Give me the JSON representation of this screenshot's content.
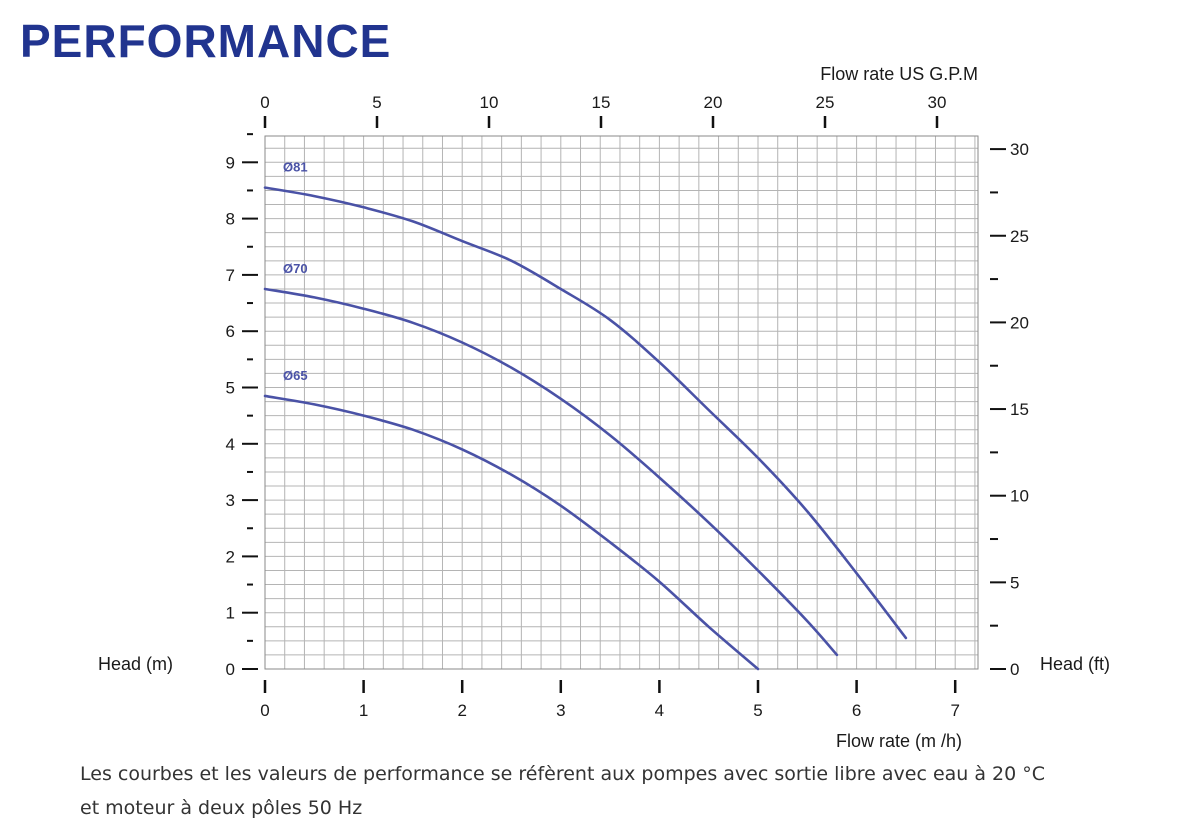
{
  "title": "PERFORMANCE",
  "note": {
    "line1": "Les courbes et les valeurs de performance se réfèrent aux pompes avec sortie libre avec eau à 20 °C",
    "line2": "et moteur à deux pôles 50 Hz"
  },
  "colors": {
    "title": "#21348f",
    "curve": "#4a52a6",
    "grid": "#b4b4b4",
    "text": "#1a1a1a"
  },
  "chart_data": {
    "type": "line",
    "xlabel": "Flow rate  (m /h)",
    "x2label": "Flow rate US  G.P.M",
    "ylabel": "Head (m)",
    "y2label": "Head (ft)",
    "xlim": [
      0,
      7.2
    ],
    "ylim": [
      0,
      9.5
    ],
    "x_ticks": [
      "0",
      "1",
      "2",
      "3",
      "4",
      "5",
      "6",
      "7"
    ],
    "x2_ticks": [
      "0",
      "5",
      "10",
      "15",
      "20",
      "25",
      "30"
    ],
    "y_ticks": [
      "0",
      "1",
      "2",
      "3",
      "4",
      "5",
      "6",
      "7",
      "8",
      "9"
    ],
    "y2_ticks": [
      "0",
      "5",
      "10",
      "15",
      "20",
      "25",
      "30"
    ],
    "grid": true,
    "series": [
      {
        "name": "Ø81",
        "x": [
          0,
          0.5,
          1,
          1.5,
          2,
          2.5,
          3,
          3.5,
          4,
          4.5,
          5,
          5.5,
          6,
          6.5
        ],
        "y": [
          8.55,
          8.4,
          8.2,
          7.95,
          7.6,
          7.25,
          6.75,
          6.2,
          5.45,
          4.6,
          3.75,
          2.8,
          1.7,
          0.55
        ]
      },
      {
        "name": "Ø70",
        "x": [
          0,
          0.5,
          1,
          1.5,
          2,
          2.5,
          3,
          3.5,
          4,
          4.5,
          5,
          5.5,
          5.8
        ],
        "y": [
          6.75,
          6.6,
          6.4,
          6.15,
          5.8,
          5.35,
          4.8,
          4.15,
          3.4,
          2.6,
          1.75,
          0.85,
          0.25
        ]
      },
      {
        "name": "Ø65",
        "x": [
          0,
          0.5,
          1,
          1.5,
          2,
          2.5,
          3,
          3.5,
          4,
          4.5,
          5
        ],
        "y": [
          4.85,
          4.7,
          4.5,
          4.25,
          3.9,
          3.45,
          2.9,
          2.25,
          1.55,
          0.75,
          0
        ]
      }
    ]
  }
}
